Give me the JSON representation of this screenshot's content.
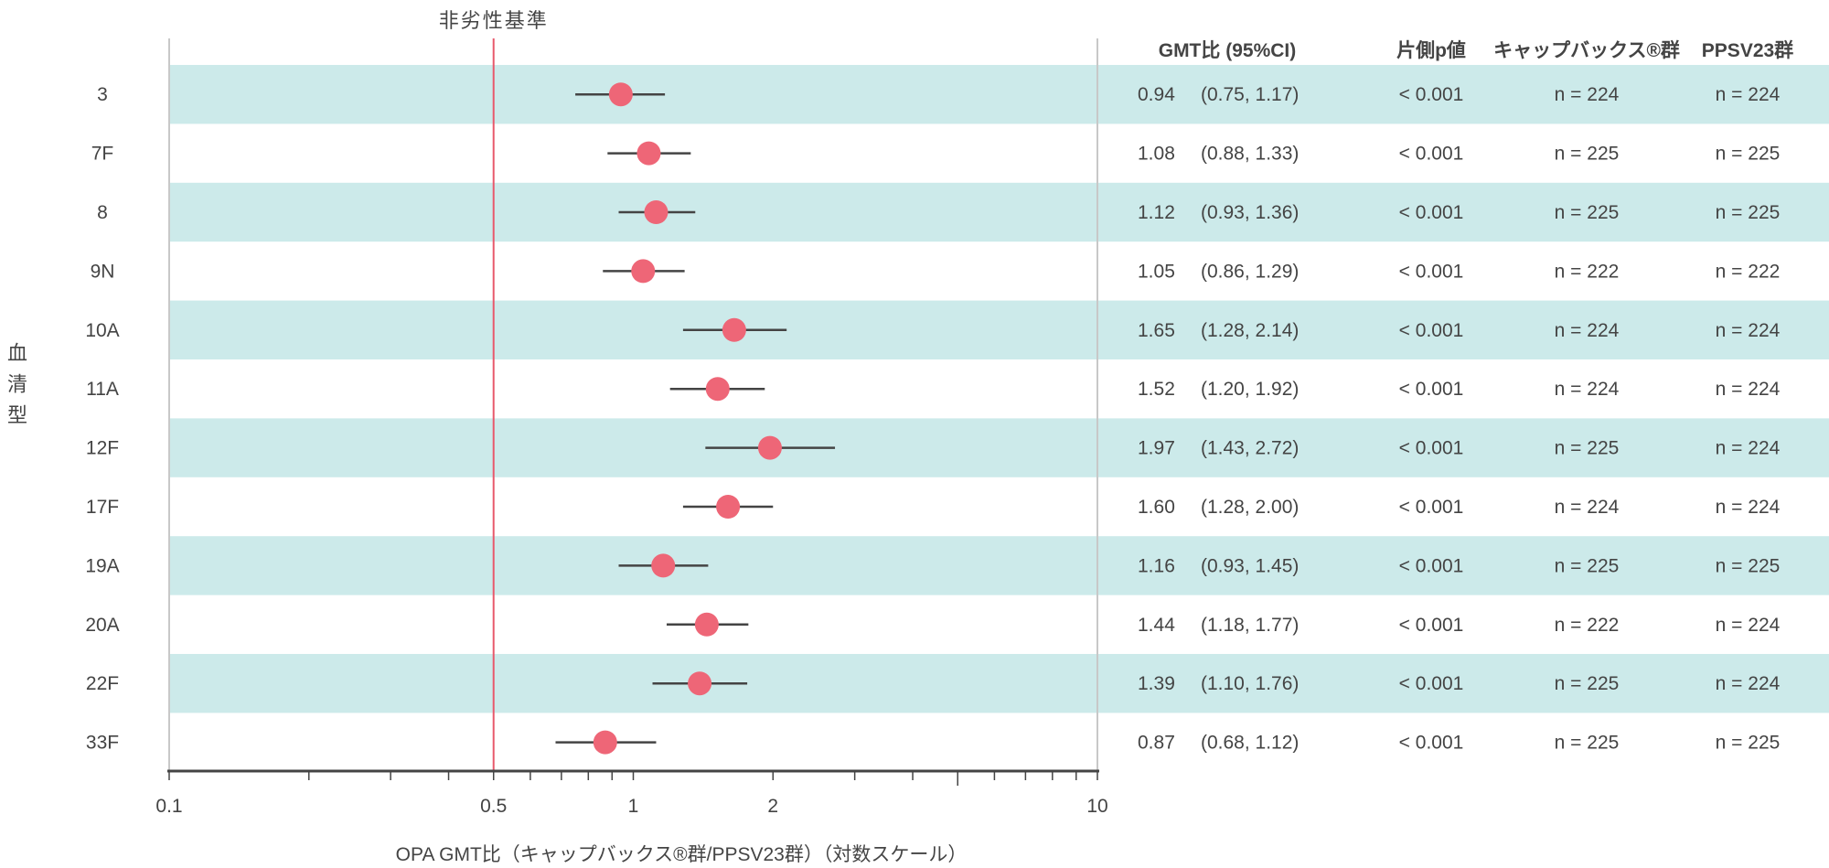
{
  "chart_data": {
    "type": "forest",
    "reference_label": "非劣性基準",
    "reference_value": 0.5,
    "xlabel": "OPA GMT比（キャップバックス®群/PPSV23群）（対数スケール）",
    "ylabel": "血清型",
    "x_scale": "log",
    "xlim": [
      0.1,
      10
    ],
    "x_ticks": [
      0.1,
      0.5,
      1,
      2,
      10
    ],
    "x_tick_labels": [
      "0.1",
      "0.5",
      "1",
      "2",
      "10"
    ],
    "colors": {
      "point": "#ee6677",
      "band": "#cceaea",
      "reference_line": "#e8596c",
      "ci_line": "#444444"
    },
    "table_headers": [
      "GMT比 (95%CI)",
      "片側p値",
      "キャップバックス®群",
      "PPSV23群"
    ],
    "rows": [
      {
        "serotype": "3",
        "gmt": 0.94,
        "lower": 0.75,
        "upper": 1.17,
        "gmt_text": "0.94",
        "ci_text": "(0.75, 1.17)",
        "p": "< 0.001",
        "n_cap": "n = 224",
        "n_ppsv": "n = 224"
      },
      {
        "serotype": "7F",
        "gmt": 1.08,
        "lower": 0.88,
        "upper": 1.33,
        "gmt_text": "1.08",
        "ci_text": "(0.88, 1.33)",
        "p": "< 0.001",
        "n_cap": "n = 225",
        "n_ppsv": "n = 225"
      },
      {
        "serotype": "8",
        "gmt": 1.12,
        "lower": 0.93,
        "upper": 1.36,
        "gmt_text": "1.12",
        "ci_text": "(0.93, 1.36)",
        "p": "< 0.001",
        "n_cap": "n = 225",
        "n_ppsv": "n = 225"
      },
      {
        "serotype": "9N",
        "gmt": 1.05,
        "lower": 0.86,
        "upper": 1.29,
        "gmt_text": "1.05",
        "ci_text": "(0.86, 1.29)",
        "p": "< 0.001",
        "n_cap": "n = 222",
        "n_ppsv": "n = 222"
      },
      {
        "serotype": "10A",
        "gmt": 1.65,
        "lower": 1.28,
        "upper": 2.14,
        "gmt_text": "1.65",
        "ci_text": "(1.28, 2.14)",
        "p": "< 0.001",
        "n_cap": "n = 224",
        "n_ppsv": "n = 224"
      },
      {
        "serotype": "11A",
        "gmt": 1.52,
        "lower": 1.2,
        "upper": 1.92,
        "gmt_text": "1.52",
        "ci_text": "(1.20, 1.92)",
        "p": "< 0.001",
        "n_cap": "n = 224",
        "n_ppsv": "n = 224"
      },
      {
        "serotype": "12F",
        "gmt": 1.97,
        "lower": 1.43,
        "upper": 2.72,
        "gmt_text": "1.97",
        "ci_text": "(1.43, 2.72)",
        "p": "< 0.001",
        "n_cap": "n = 225",
        "n_ppsv": "n = 224"
      },
      {
        "serotype": "17F",
        "gmt": 1.6,
        "lower": 1.28,
        "upper": 2.0,
        "gmt_text": "1.60",
        "ci_text": "(1.28, 2.00)",
        "p": "< 0.001",
        "n_cap": "n = 224",
        "n_ppsv": "n = 224"
      },
      {
        "serotype": "19A",
        "gmt": 1.16,
        "lower": 0.93,
        "upper": 1.45,
        "gmt_text": "1.16",
        "ci_text": "(0.93, 1.45)",
        "p": "< 0.001",
        "n_cap": "n = 225",
        "n_ppsv": "n = 225"
      },
      {
        "serotype": "20A",
        "gmt": 1.44,
        "lower": 1.18,
        "upper": 1.77,
        "gmt_text": "1.44",
        "ci_text": "(1.18, 1.77)",
        "p": "< 0.001",
        "n_cap": "n = 222",
        "n_ppsv": "n = 224"
      },
      {
        "serotype": "22F",
        "gmt": 1.39,
        "lower": 1.1,
        "upper": 1.76,
        "gmt_text": "1.39",
        "ci_text": "(1.10, 1.76)",
        "p": "< 0.001",
        "n_cap": "n = 225",
        "n_ppsv": "n = 224"
      },
      {
        "serotype": "33F",
        "gmt": 0.87,
        "lower": 0.68,
        "upper": 1.12,
        "gmt_text": "0.87",
        "ci_text": "(0.68, 1.12)",
        "p": "< 0.001",
        "n_cap": "n = 225",
        "n_ppsv": "n = 225"
      }
    ]
  }
}
